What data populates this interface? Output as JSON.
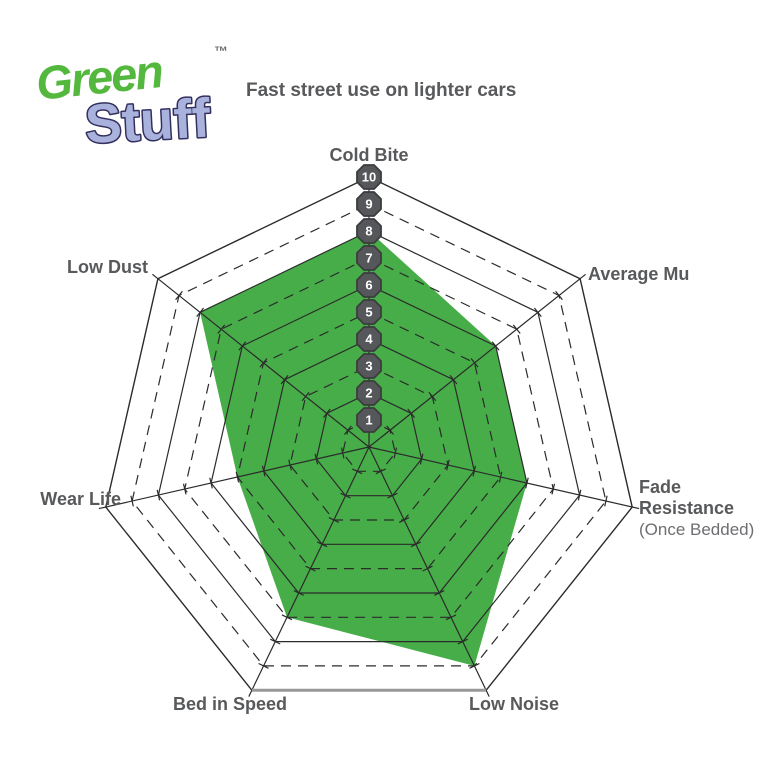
{
  "logo": {
    "word1": "Green",
    "word2": "Stuff",
    "trademark": "™",
    "word1_color": "#55b83e",
    "word2_color": "#a9b2dc",
    "word2_outline": "#33305e"
  },
  "subtitle": "Fast street use on lighter cars",
  "labels": {
    "cold_bite": "Cold Bite",
    "average_mu": "Average Mu",
    "fade_line1": "Fade",
    "fade_line2": "Resistance",
    "fade_line3": "(Once Bedded)",
    "low_noise": "Low Noise",
    "bed_in_speed": "Bed in Speed",
    "wear_life": "Wear Life",
    "low_dust": "Low Dust"
  },
  "chart_data": {
    "type": "radar",
    "title": "GreenStuff — Fast street use on lighter cars",
    "categories": [
      "Cold Bite",
      "Average Mu",
      "Fade Resistance (Once Bedded)",
      "Low Noise",
      "Bed in Speed",
      "Wear Life",
      "Low Dust"
    ],
    "series": [
      {
        "name": "GreenStuff",
        "values": [
          8,
          6,
          6,
          9,
          7,
          5,
          8
        ]
      }
    ],
    "scale_min": 0,
    "scale_max": 10,
    "scale_ticks": [
      1,
      2,
      3,
      4,
      5,
      6,
      7,
      8,
      9,
      10
    ],
    "grid": "7-sided concentric rings 1-10, even rings solid, odd rings dashed, ticks on spokes",
    "legend": "none",
    "fill_color": "#47ad49",
    "grid_color": "#2b2b2b",
    "badge_color": "#56575a",
    "badge_border_color": "#3c3c3e",
    "badge_text_color": "#ffffff",
    "outer_bottom_edge_color": "#97989a",
    "label_color": "#58595b"
  }
}
